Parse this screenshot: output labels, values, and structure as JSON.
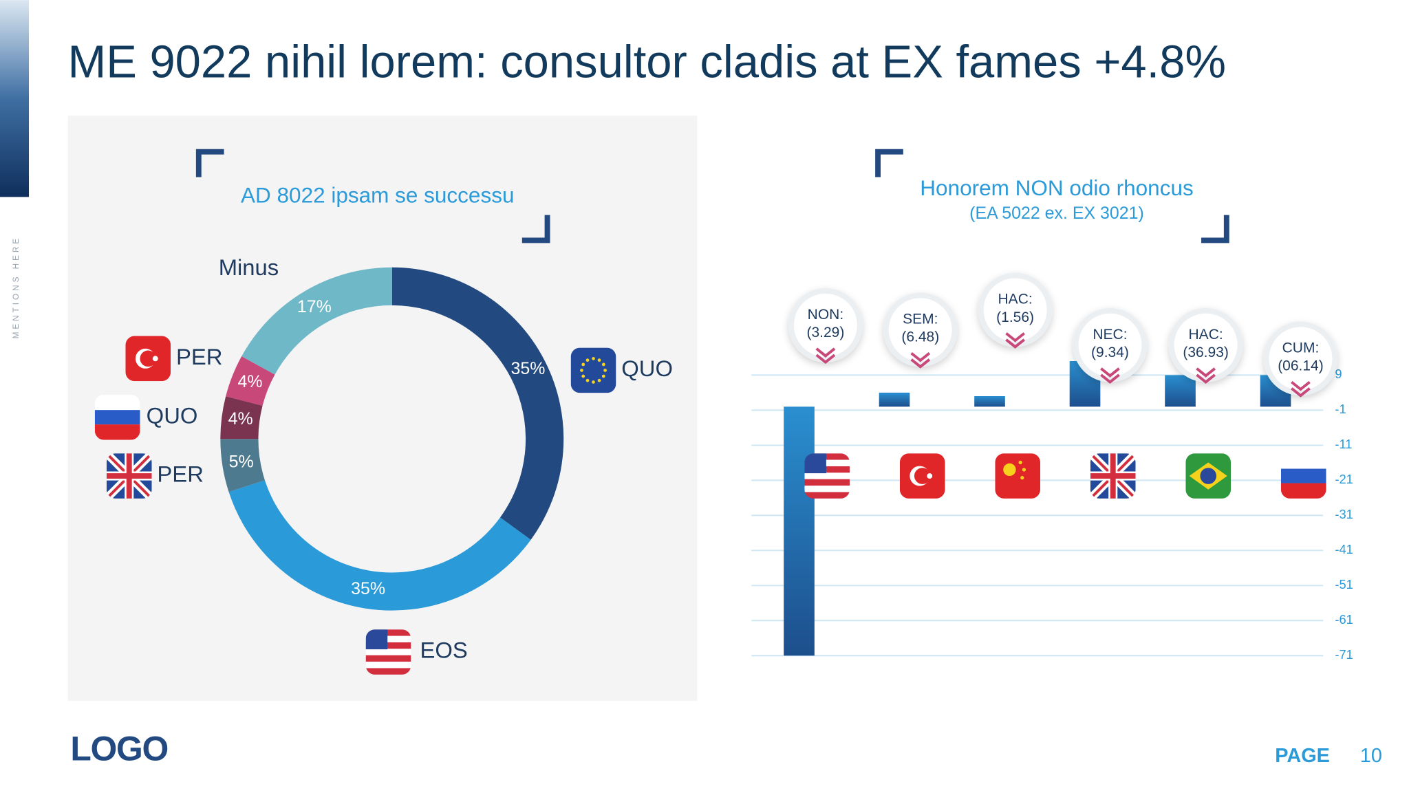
{
  "title": "ME 9022 nihil lorem: consultor cladis at EX fames +4.8%",
  "side_text": "MENTIONS HERE",
  "logo": "LOGO",
  "page_label": "PAGE",
  "page_number": "10",
  "chart_data": [
    {
      "type": "donut",
      "title": "AD 8022 ipsam se successu",
      "categories": [
        "QUO",
        "EOS",
        "PER",
        "QUO",
        "PER",
        "Minus"
      ],
      "values": [
        35,
        35,
        5,
        4,
        4,
        17
      ],
      "value_labels": [
        "35%",
        "35%",
        "5%",
        "4%",
        "4%",
        "17%"
      ],
      "colors": [
        "#234a80",
        "#2a9ad8",
        "#4d7a8e",
        "#7a3450",
        "#c8487a",
        "#6fb8c8"
      ]
    },
    {
      "type": "bar",
      "title": "Honorem NON odio rhoncus",
      "subtitle": "(EA 5022 ex. EX 3021)",
      "categories": [
        "NON:",
        "SEM:",
        "HAC:",
        "NEC:",
        "HAC:",
        "CUM:"
      ],
      "annotations": [
        "(3.29)",
        "(6.48)",
        "(1.56)",
        "(9.34)",
        "(36.93)",
        "(06.14)"
      ],
      "values": [
        -71,
        4,
        3,
        13,
        9,
        9
      ],
      "color": "#2a8fd0",
      "ylim": [
        -71,
        15
      ],
      "yticks": [
        9,
        -1,
        -11,
        -21,
        -31,
        -41,
        -51,
        -61,
        -71
      ],
      "grid": true
    }
  ]
}
